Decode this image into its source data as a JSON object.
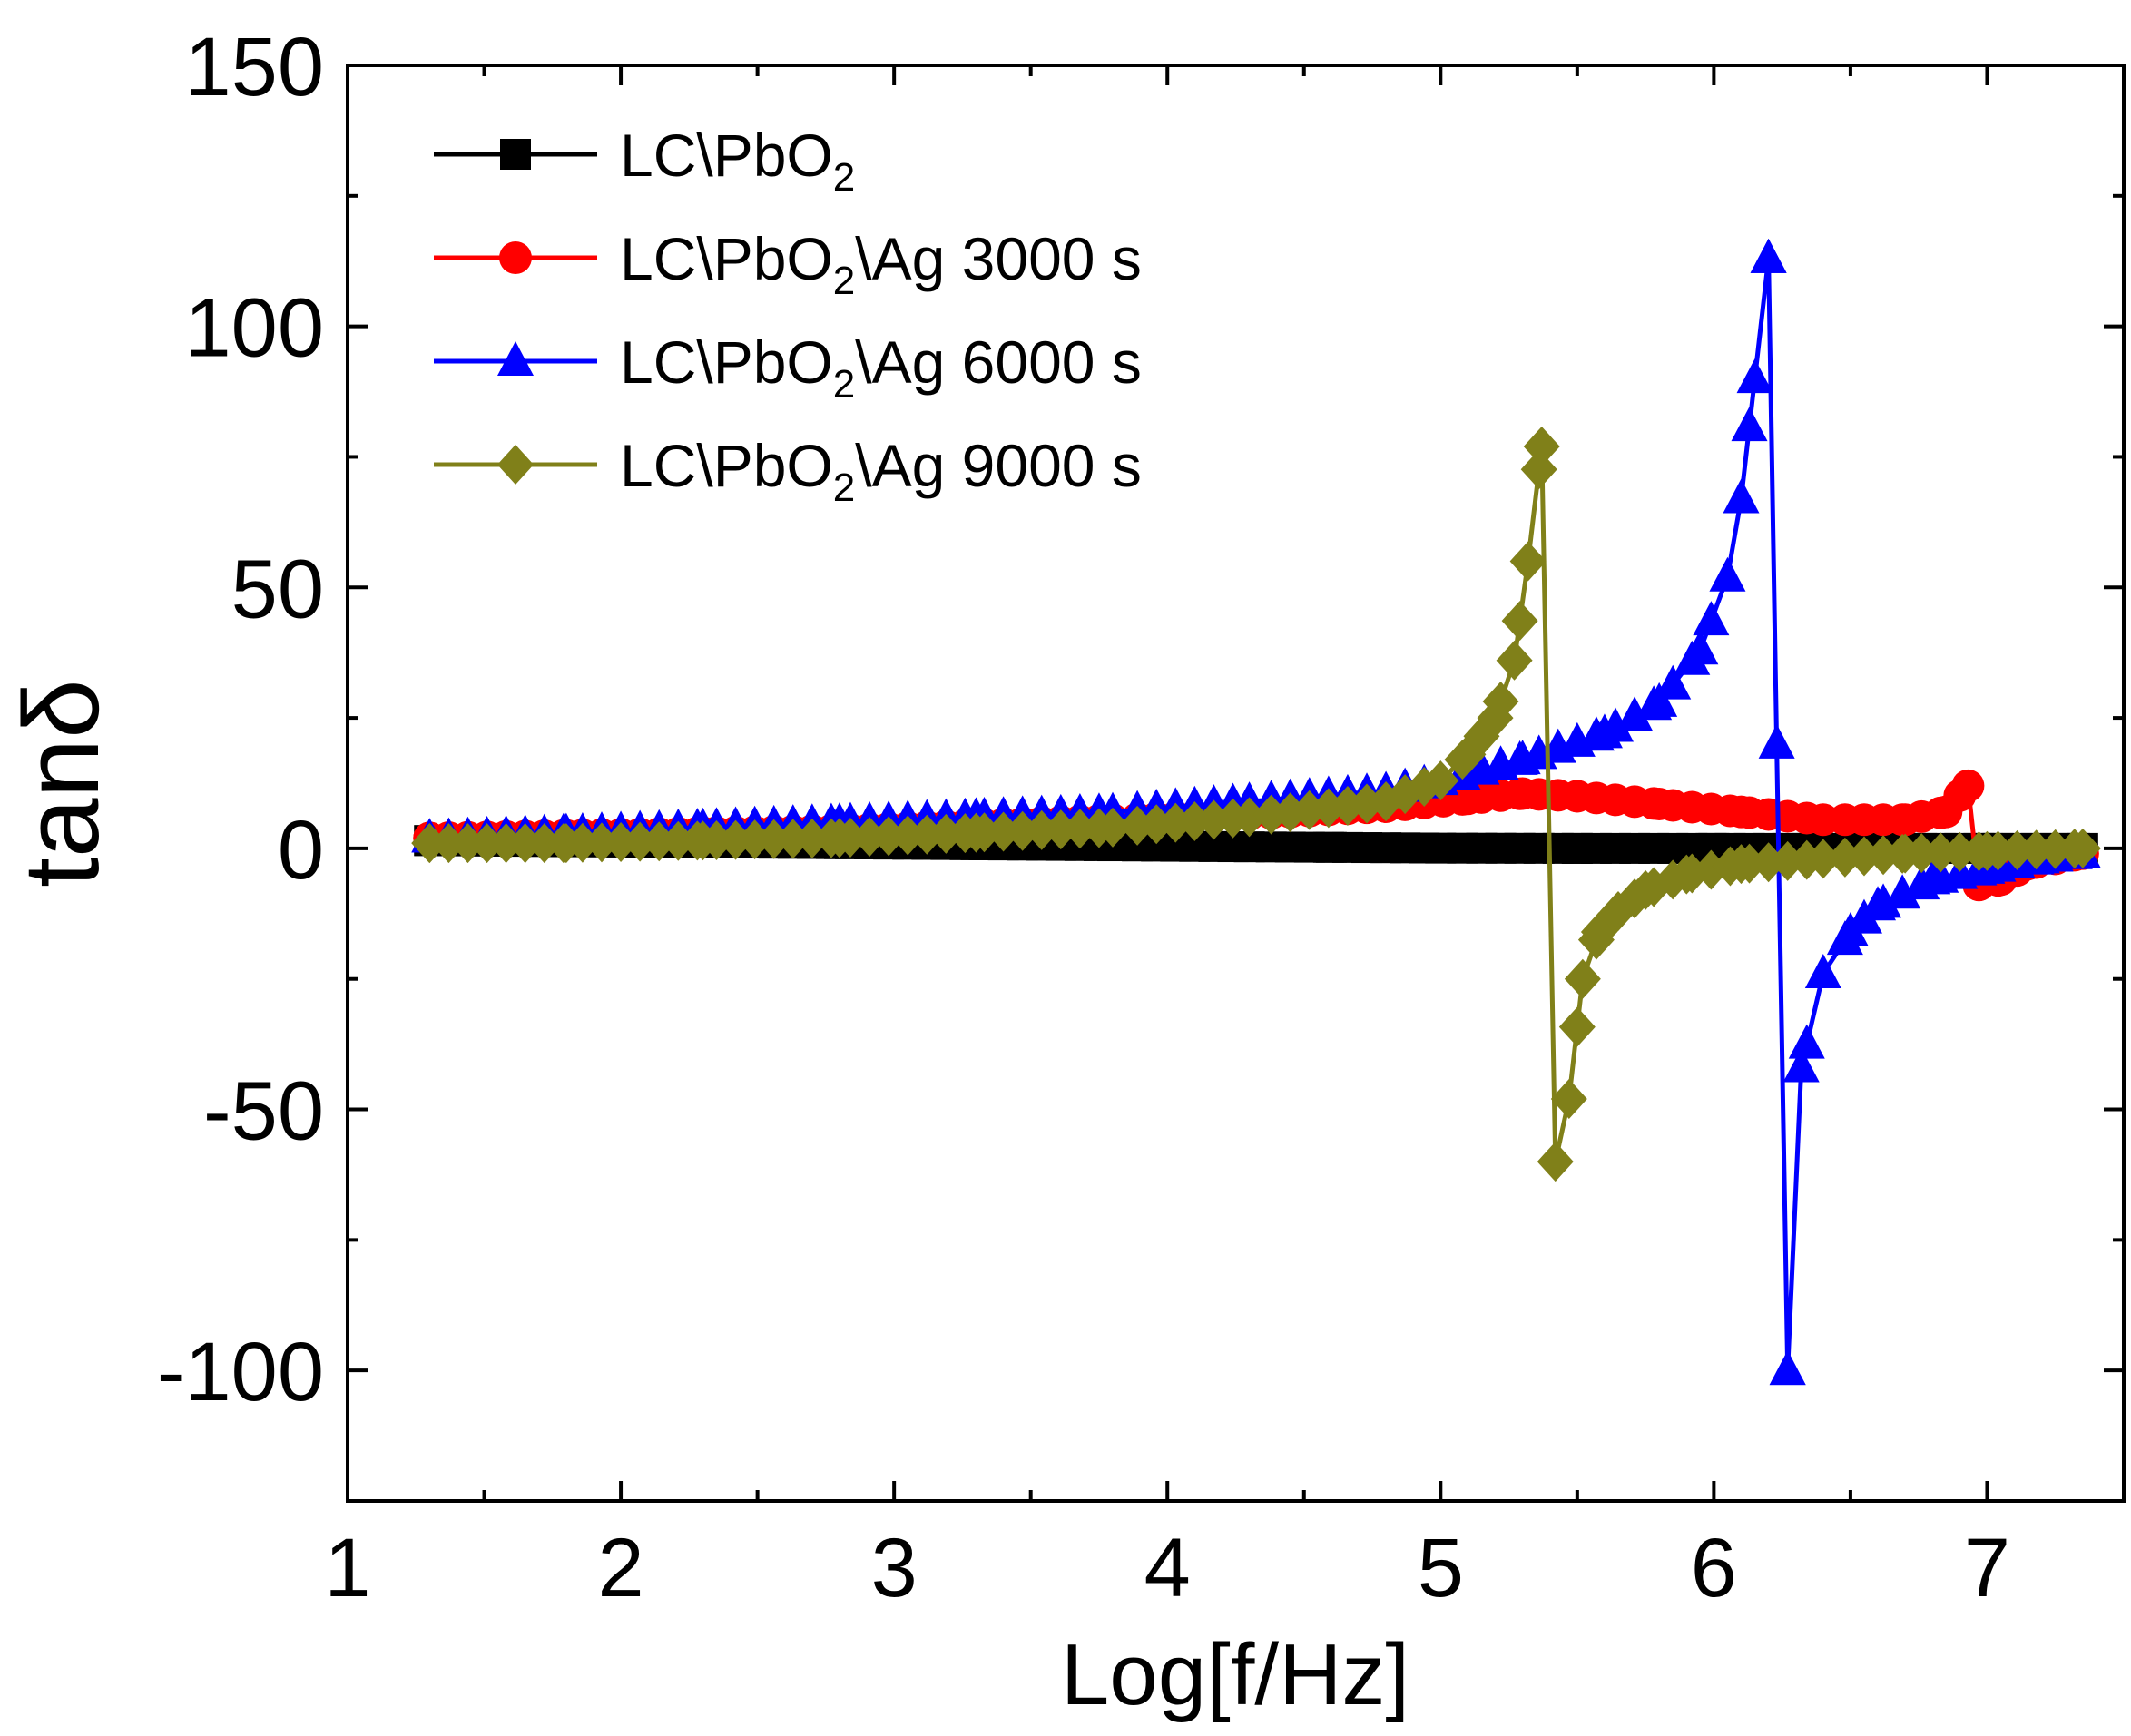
{
  "chart_data": {
    "type": "line",
    "title": "",
    "xlabel": "Log[f/Hz]",
    "ylabel": "tanδ",
    "xlim": [
      1,
      7.5
    ],
    "ylim": [
      -125,
      150
    ],
    "xticks": [
      1,
      2,
      3,
      4,
      5,
      6,
      7
    ],
    "yticks": [
      -100,
      -50,
      0,
      50,
      100,
      150
    ],
    "legend_position": "top-left",
    "grid": false,
    "series": [
      {
        "name": "LC\\PbO₂",
        "label_parts": [
          "LC\\PbO",
          "2",
          ""
        ],
        "color": "#000000",
        "marker": "square",
        "x": [
          1.3,
          1.8,
          2.3,
          2.8,
          3.3,
          3.8,
          4.3,
          4.6,
          5.0,
          5.5,
          6.0,
          6.5,
          7.0,
          7.35
        ],
        "y": [
          1.5,
          1.3,
          1.1,
          0.9,
          0.7,
          0.5,
          0.3,
          0.2,
          0.05,
          0.0,
          0.0,
          0.0,
          0.0,
          0.0
        ]
      },
      {
        "name": "LC\\PbO₂\\Ag 3000 s",
        "label_parts": [
          "LC\\PbO",
          "2",
          "\\Ag 3000 s"
        ],
        "color": "#ff0000",
        "marker": "circle",
        "x": [
          1.3,
          1.8,
          2.3,
          2.8,
          3.3,
          3.8,
          4.3,
          4.8,
          5.1,
          5.3,
          5.5,
          5.8,
          6.1,
          6.4,
          6.7,
          6.85,
          6.93,
          6.97,
          7.05,
          7.15,
          7.25,
          7.35
        ],
        "y": [
          2,
          2.5,
          3,
          3.5,
          4.5,
          5.5,
          6.5,
          8,
          9.5,
          10.5,
          10,
          8.5,
          7,
          5.5,
          5.5,
          7,
          12,
          -7,
          -6,
          -3,
          -2,
          -1
        ]
      },
      {
        "name": "LC\\PbO₂\\Ag 6000 s",
        "label_parts": [
          "LC\\PbO",
          "2",
          "\\Ag 6000 s"
        ],
        "color": "#0000ff",
        "marker": "triangle",
        "x": [
          1.3,
          1.8,
          2.3,
          2.8,
          3.3,
          3.8,
          4.3,
          4.8,
          5.0,
          5.3,
          5.6,
          5.8,
          5.95,
          6.05,
          6.1,
          6.15,
          6.2,
          6.23,
          6.27,
          6.32,
          6.4,
          6.5,
          6.6,
          6.8,
          7.0,
          7.2,
          7.35
        ],
        "y": [
          2,
          3,
          4,
          5,
          6,
          7,
          9,
          11,
          13,
          17,
          22,
          28,
          38,
          52,
          67,
          90,
          113,
          20,
          -100,
          -42,
          -24,
          -16,
          -11,
          -6,
          -4,
          -2,
          -1
        ]
      },
      {
        "name": "LC\\PbO₂\\Ag 9000 s",
        "label_parts": [
          "LC\\PbO",
          "2",
          "\\Ag 9000 s"
        ],
        "color": "#808019",
        "marker": "diamond",
        "x": [
          1.3,
          1.8,
          2.3,
          2.8,
          3.3,
          3.8,
          4.3,
          4.8,
          5.0,
          5.1,
          5.2,
          5.27,
          5.32,
          5.37,
          5.42,
          5.47,
          5.52,
          5.58,
          5.65,
          5.75,
          5.9,
          6.1,
          6.4,
          6.7,
          7.0,
          7.35
        ],
        "y": [
          1,
          1,
          1.5,
          2,
          3,
          4,
          6,
          9,
          13,
          18,
          25,
          36,
          55,
          77,
          -60,
          -48,
          -25,
          -16,
          -12,
          -8,
          -5,
          -3,
          -2,
          -1,
          -0.5,
          0
        ]
      }
    ]
  }
}
